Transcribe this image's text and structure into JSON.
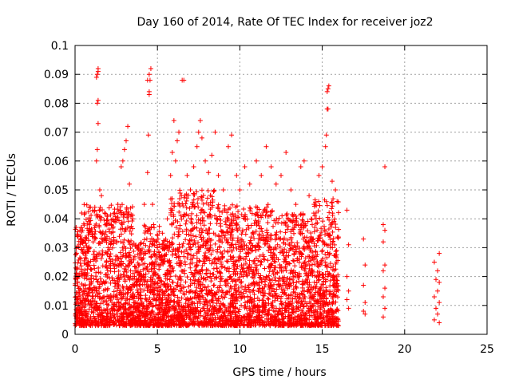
{
  "chart_data": {
    "type": "scatter",
    "title": "Day 160 of 2014, Rate Of TEC Index for receiver joz2",
    "xlabel": "GPS time / hours",
    "ylabel": "ROTI / TECUs",
    "xlim": [
      0,
      25
    ],
    "ylim": [
      0,
      0.1
    ],
    "x_ticks": [
      0,
      5,
      10,
      15,
      20,
      25
    ],
    "y_ticks": [
      0,
      0.01,
      0.02,
      0.03,
      0.04,
      0.05,
      0.06,
      0.07,
      0.08,
      0.09,
      0.1
    ],
    "x_tick_labels": [
      "0",
      "5",
      "10",
      "15",
      "20",
      "25"
    ],
    "y_tick_labels": [
      "0",
      "0.01",
      "0.02",
      "0.03",
      "0.04",
      "0.05",
      "0.06",
      "0.07",
      "0.08",
      "0.09",
      "0.1"
    ],
    "grid": true,
    "marker": "+",
    "marker_color": "#ff0000",
    "series": [
      {
        "name": "ROTI",
        "points": [
          [
            0.1,
            0.012
          ],
          [
            0.2,
            0.02
          ],
          [
            0.3,
            0.036
          ],
          [
            0.4,
            0.042
          ],
          [
            0.5,
            0.028
          ],
          [
            0.6,
            0.015
          ],
          [
            0.8,
            0.025
          ],
          [
            1.0,
            0.01
          ],
          [
            1.1,
            0.032
          ],
          [
            1.2,
            0.044
          ],
          [
            1.3,
            0.06
          ],
          [
            1.35,
            0.064
          ],
          [
            1.4,
            0.073
          ],
          [
            1.35,
            0.08
          ],
          [
            1.4,
            0.081
          ],
          [
            1.3,
            0.089
          ],
          [
            1.35,
            0.09
          ],
          [
            1.4,
            0.091
          ],
          [
            1.4,
            0.092
          ],
          [
            1.5,
            0.05
          ],
          [
            1.6,
            0.048
          ],
          [
            1.8,
            0.042
          ],
          [
            2.0,
            0.03
          ],
          [
            2.2,
            0.038
          ],
          [
            2.4,
            0.042
          ],
          [
            2.6,
            0.045
          ],
          [
            2.8,
            0.058
          ],
          [
            2.9,
            0.06
          ],
          [
            3.0,
            0.064
          ],
          [
            3.1,
            0.067
          ],
          [
            3.2,
            0.072
          ],
          [
            3.3,
            0.052
          ],
          [
            3.5,
            0.04
          ],
          [
            3.8,
            0.03
          ],
          [
            4.0,
            0.02
          ],
          [
            4.2,
            0.045
          ],
          [
            4.4,
            0.056
          ],
          [
            4.45,
            0.069
          ],
          [
            4.5,
            0.083
          ],
          [
            4.5,
            0.084
          ],
          [
            4.4,
            0.088
          ],
          [
            4.55,
            0.088
          ],
          [
            4.5,
            0.09
          ],
          [
            4.6,
            0.092
          ],
          [
            4.7,
            0.045
          ],
          [
            5.0,
            0.03
          ],
          [
            5.3,
            0.035
          ],
          [
            5.6,
            0.04
          ],
          [
            5.8,
            0.055
          ],
          [
            5.9,
            0.063
          ],
          [
            6.0,
            0.074
          ],
          [
            6.1,
            0.06
          ],
          [
            6.2,
            0.067
          ],
          [
            6.3,
            0.07
          ],
          [
            6.5,
            0.088
          ],
          [
            6.6,
            0.088
          ],
          [
            6.8,
            0.055
          ],
          [
            7.0,
            0.05
          ],
          [
            7.2,
            0.058
          ],
          [
            7.4,
            0.065
          ],
          [
            7.5,
            0.07
          ],
          [
            7.6,
            0.074
          ],
          [
            7.7,
            0.068
          ],
          [
            7.9,
            0.06
          ],
          [
            8.1,
            0.056
          ],
          [
            8.3,
            0.062
          ],
          [
            8.5,
            0.07
          ],
          [
            8.7,
            0.055
          ],
          [
            9.0,
            0.05
          ],
          [
            9.3,
            0.065
          ],
          [
            9.5,
            0.069
          ],
          [
            9.8,
            0.055
          ],
          [
            10.0,
            0.05
          ],
          [
            10.3,
            0.058
          ],
          [
            10.6,
            0.052
          ],
          [
            11.0,
            0.06
          ],
          [
            11.3,
            0.055
          ],
          [
            11.6,
            0.065
          ],
          [
            11.9,
            0.058
          ],
          [
            12.2,
            0.052
          ],
          [
            12.5,
            0.055
          ],
          [
            12.8,
            0.063
          ],
          [
            13.1,
            0.05
          ],
          [
            13.4,
            0.045
          ],
          [
            13.7,
            0.058
          ],
          [
            13.9,
            0.06
          ],
          [
            14.2,
            0.048
          ],
          [
            14.5,
            0.045
          ],
          [
            14.8,
            0.055
          ],
          [
            15.0,
            0.058
          ],
          [
            15.2,
            0.065
          ],
          [
            15.25,
            0.069
          ],
          [
            15.3,
            0.078
          ],
          [
            15.35,
            0.078
          ],
          [
            15.3,
            0.084
          ],
          [
            15.35,
            0.085
          ],
          [
            15.4,
            0.086
          ],
          [
            15.6,
            0.053
          ],
          [
            15.8,
            0.05
          ],
          [
            15.9,
            0.046
          ],
          [
            16.5,
            0.043
          ],
          [
            16.6,
            0.031
          ],
          [
            16.5,
            0.02
          ],
          [
            16.6,
            0.015
          ],
          [
            16.5,
            0.012
          ],
          [
            16.6,
            0.009
          ],
          [
            17.5,
            0.033
          ],
          [
            17.6,
            0.024
          ],
          [
            17.5,
            0.017
          ],
          [
            17.6,
            0.011
          ],
          [
            17.5,
            0.008
          ],
          [
            17.6,
            0.007
          ],
          [
            18.8,
            0.058
          ],
          [
            18.7,
            0.038
          ],
          [
            18.8,
            0.036
          ],
          [
            18.7,
            0.032
          ],
          [
            18.8,
            0.024
          ],
          [
            18.7,
            0.022
          ],
          [
            18.8,
            0.016
          ],
          [
            18.7,
            0.013
          ],
          [
            18.8,
            0.009
          ],
          [
            18.7,
            0.006
          ],
          [
            21.8,
            0.025
          ],
          [
            22.1,
            0.028
          ],
          [
            22.0,
            0.022
          ],
          [
            21.9,
            0.019
          ],
          [
            22.1,
            0.018
          ],
          [
            22.0,
            0.015
          ],
          [
            21.8,
            0.013
          ],
          [
            22.1,
            0.011
          ],
          [
            21.9,
            0.009
          ],
          [
            22.0,
            0.007
          ],
          [
            21.8,
            0.005
          ],
          [
            22.1,
            0.004
          ]
        ]
      }
    ],
    "dense_band": {
      "x_range": [
        0,
        16
      ],
      "y_range": [
        0.003,
        0.048
      ],
      "description_note": ""
    }
  }
}
